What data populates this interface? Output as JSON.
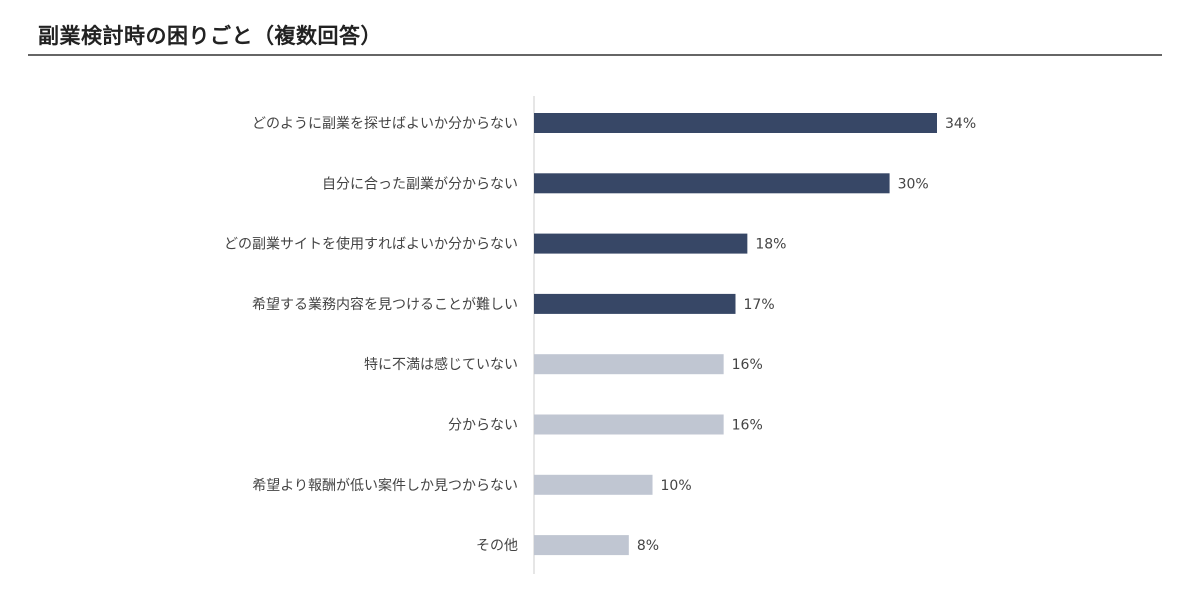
{
  "chart_data": {
    "type": "bar",
    "orientation": "horizontal",
    "title": "副業検討時の困りごと（複数回答）",
    "xlabel": "",
    "ylabel": "",
    "value_suffix": "%",
    "xlim": [
      0,
      38
    ],
    "grid": false,
    "categories": [
      "どのように副業を探せばよいか分からない",
      "自分に合った副業が分からない",
      "どの副業サイトを使用すればよいか分からない",
      "希望する業務内容を見つけることが難しい",
      "特に不満は感じていない",
      "分からない",
      "希望より報酬が低い案件しか見つからない",
      "その他"
    ],
    "values": [
      34,
      30,
      18,
      17,
      16,
      16,
      10,
      8
    ],
    "data_labels": [
      "34%",
      "30%",
      "18%",
      "17%",
      "16%",
      "16%",
      "10%",
      "8%"
    ],
    "bar_colors": [
      "#374766",
      "#374766",
      "#374766",
      "#374766",
      "#c0c6d2",
      "#c0c6d2",
      "#c0c6d2",
      "#c0c6d2"
    ],
    "axis_color": "#cccccc"
  }
}
